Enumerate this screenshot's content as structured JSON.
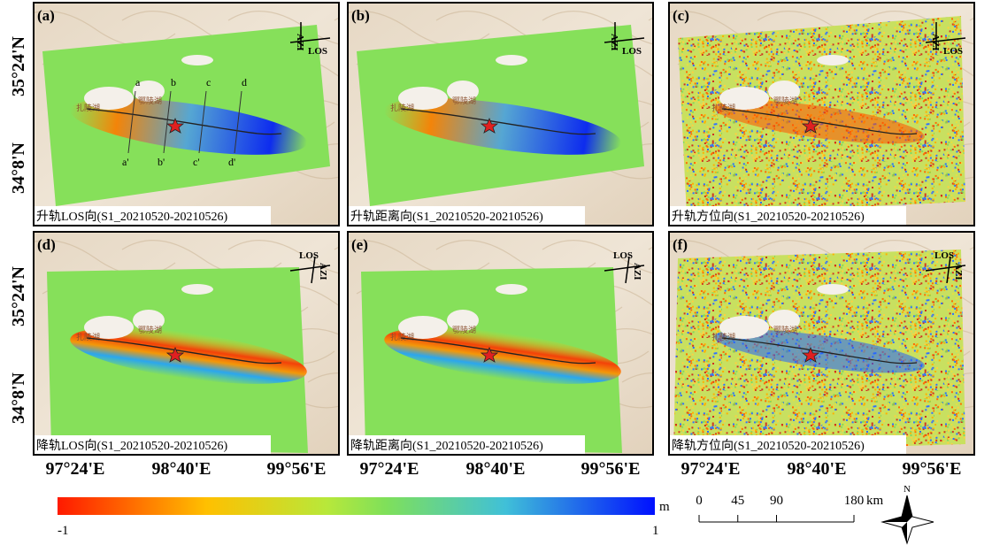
{
  "panels": [
    {
      "label": "(a)",
      "caption": "升轨LOS向(S1_20210520-20210526)",
      "lakes": [
        "扎陵湖",
        "鄂陵湖"
      ],
      "arrows": [
        "AZI",
        "LOS"
      ],
      "profiles": [
        [
          "a",
          "a'"
        ],
        [
          "b",
          "b'"
        ],
        [
          "c",
          "c'"
        ],
        [
          "d",
          "d'"
        ]
      ]
    },
    {
      "label": "(b)",
      "caption": "升轨距离向(S1_20210520-20210526)",
      "lakes": [
        "扎陵湖",
        "鄂陵湖"
      ],
      "arrows": [
        "AZI",
        "LOS"
      ]
    },
    {
      "label": "(c)",
      "caption": "升轨方位向(S1_20210520-20210526)",
      "lakes": [
        "扎陵湖",
        "鄂陵湖"
      ],
      "arrows": [
        "AZI",
        "LOS"
      ]
    },
    {
      "label": "(d)",
      "caption": "降轨LOS向(S1_20210520-20210526)",
      "lakes": [
        "扎陵湖",
        "鄂陵湖"
      ],
      "arrows": [
        "AZI",
        "LOS"
      ]
    },
    {
      "label": "(e)",
      "caption": "降轨距离向(S1_20210520-20210526)",
      "lakes": [
        "扎陵湖",
        "鄂陵湖"
      ],
      "arrows": [
        "AZI",
        "LOS"
      ]
    },
    {
      "label": "(f)",
      "caption": "降轨方位向(S1_20210520-20210526)",
      "lakes": [
        "扎陵湖",
        "鄂陵湖"
      ],
      "arrows": [
        "AZI",
        "LOS"
      ]
    }
  ],
  "lat_labels": [
    "35°24'N",
    "34°8'N"
  ],
  "lon_labels": [
    "97°24'E",
    "98°40'E",
    "99°56'E"
  ],
  "colorbar": {
    "min": -1,
    "max": 1,
    "unit": "m"
  },
  "scalebar": {
    "ticks": [
      0,
      45,
      90,
      180
    ],
    "unit": "km"
  },
  "north": "N"
}
